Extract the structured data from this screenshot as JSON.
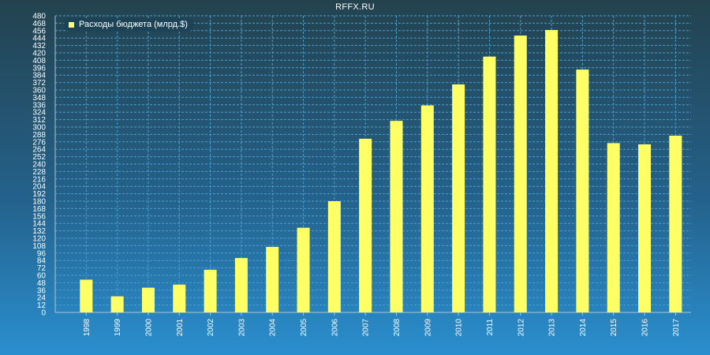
{
  "header": {
    "site": "RFFX.RU"
  },
  "colors": {
    "bar": "#ffff66",
    "grid": "#4a9fd0",
    "text": "#ffffff"
  },
  "chart_data": {
    "type": "bar",
    "title": "",
    "xlabel": "",
    "ylabel": "",
    "legend_position": "top-left",
    "grid": true,
    "ylim": [
      0,
      480
    ],
    "y_ticks": [
      0,
      12,
      24,
      36,
      48,
      60,
      72,
      84,
      96,
      108,
      120,
      132,
      144,
      156,
      168,
      180,
      192,
      204,
      216,
      228,
      240,
      252,
      264,
      276,
      288,
      300,
      312,
      324,
      336,
      348,
      360,
      372,
      384,
      396,
      408,
      420,
      432,
      444,
      456,
      468,
      480
    ],
    "categories": [
      "1998",
      "1999",
      "2000",
      "2001",
      "2002",
      "2003",
      "2004",
      "2005",
      "2006",
      "2007",
      "2008",
      "2009",
      "2010",
      "2011",
      "2012",
      "2013",
      "2014",
      "2015",
      "2016",
      "2017"
    ],
    "series": [
      {
        "name": "Расходы бюджета (млрд.$)",
        "values": [
          53,
          26,
          40,
          45,
          69,
          88,
          106,
          137,
          180,
          281,
          310,
          335,
          369,
          414,
          448,
          457,
          393,
          274,
          272,
          286
        ]
      }
    ]
  }
}
